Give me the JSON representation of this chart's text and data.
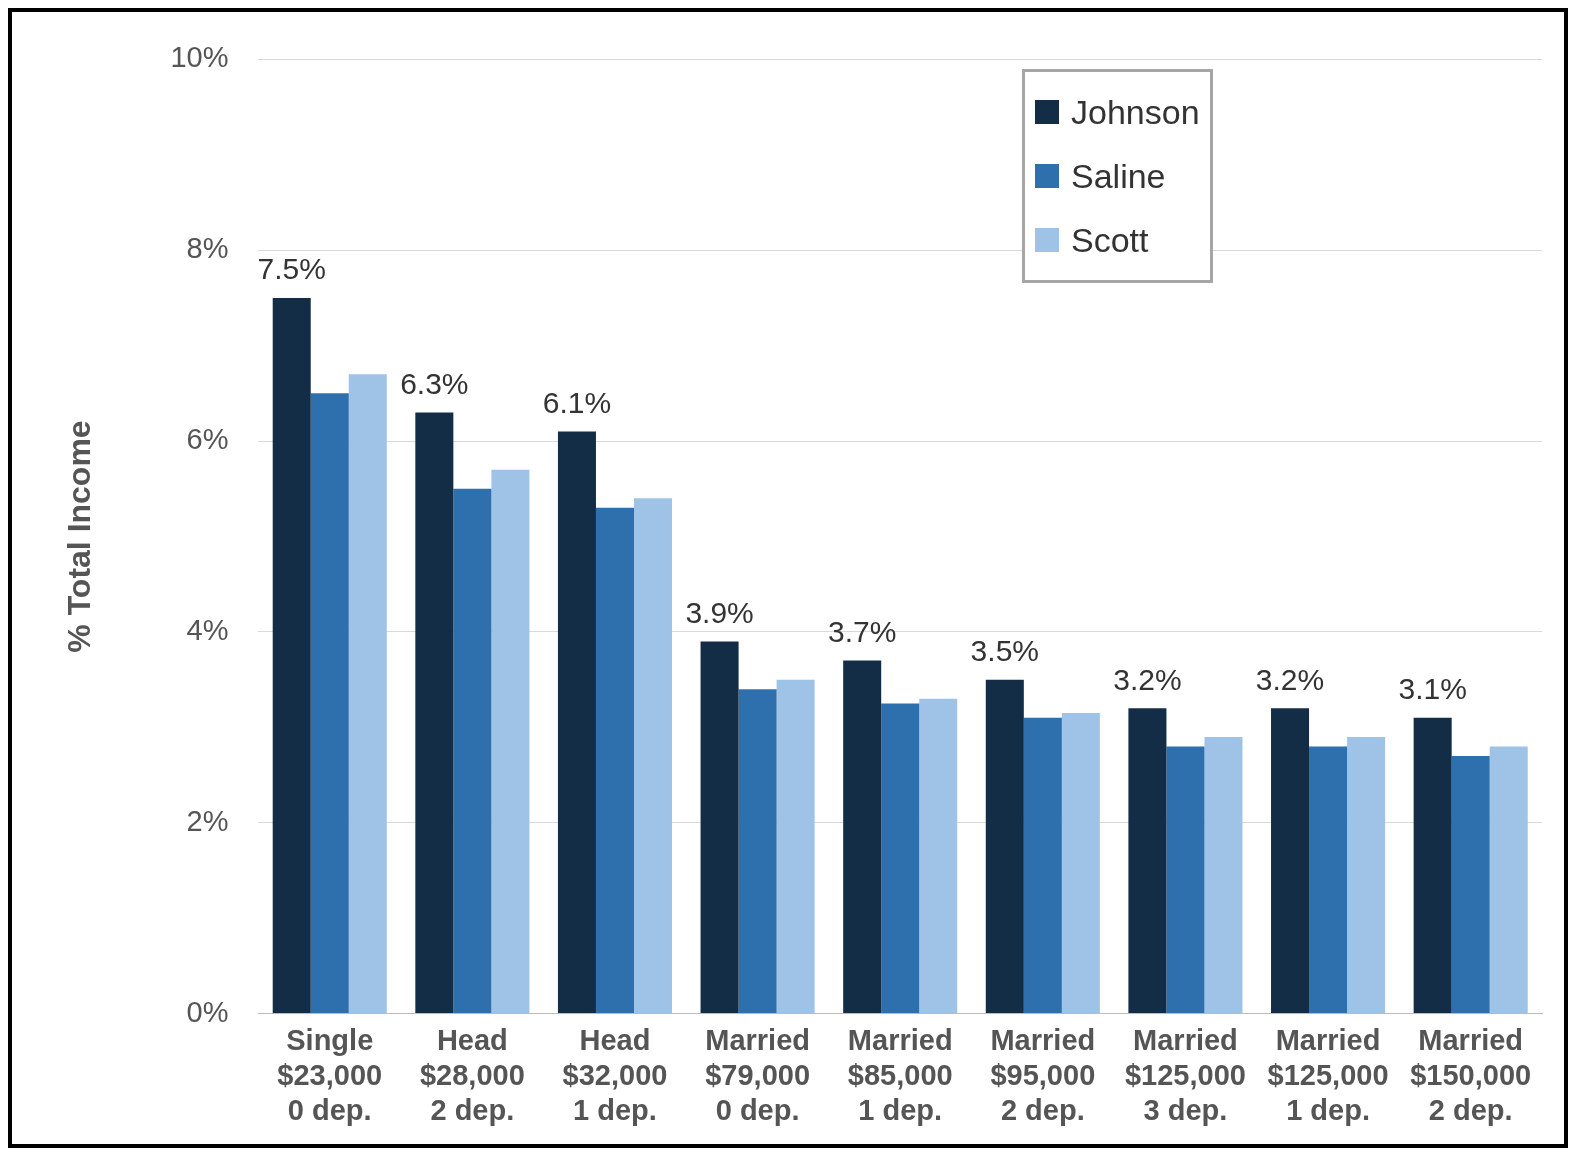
{
  "chart_data": {
    "type": "bar",
    "ylabel": "% Total Income",
    "categories": [
      "Single\n$23,000\n0 dep.",
      "Head\n$28,000\n2 dep.",
      "Head\n$32,000\n1 dep.",
      "Married\n$79,000\n0 dep.",
      "Married\n$85,000\n1 dep.",
      "Married\n$95,000\n2 dep.",
      "Married\n$125,000\n3 dep.",
      "Married\n$125,000\n1 dep.",
      "Married\n$150,000\n2 dep."
    ],
    "series": [
      {
        "name": "Johnson",
        "color": "#142d47",
        "values": [
          7.5,
          6.3,
          6.1,
          3.9,
          3.7,
          3.5,
          3.2,
          3.2,
          3.1
        ],
        "value_labels": [
          "7.5%",
          "6.3%",
          "6.1%",
          "3.9%",
          "3.7%",
          "3.5%",
          "3.2%",
          "3.2%",
          "3.1%"
        ]
      },
      {
        "name": "Saline",
        "color": "#2e6fad",
        "values": [
          6.5,
          5.5,
          5.3,
          3.4,
          3.25,
          3.1,
          2.8,
          2.8,
          2.7
        ]
      },
      {
        "name": "Scott",
        "color": "#9fc3e6",
        "values": [
          6.7,
          5.7,
          5.4,
          3.5,
          3.3,
          3.15,
          2.9,
          2.9,
          2.8
        ]
      }
    ],
    "ylim": [
      0,
      10
    ],
    "yticks": [
      {
        "value": 0,
        "label": "0%"
      },
      {
        "value": 2,
        "label": "2%"
      },
      {
        "value": 4,
        "label": "4%"
      },
      {
        "value": 6,
        "label": "6%"
      },
      {
        "value": 8,
        "label": "8%"
      },
      {
        "value": 10,
        "label": "10%"
      }
    ],
    "grid": "y",
    "legend": "top right"
  }
}
